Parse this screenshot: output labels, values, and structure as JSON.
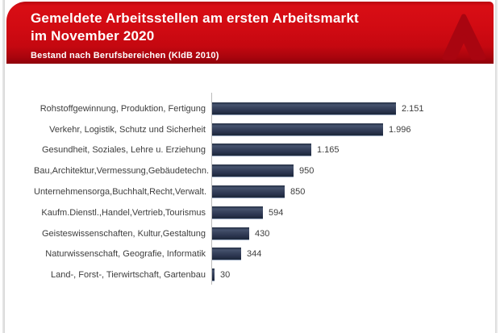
{
  "header": {
    "title_line1": "Gemeldete Arbeitsstellen am ersten Arbeitsmarkt",
    "title_line2": "im November 2020",
    "subtitle": "Bestand nach Berufsbereichen (KldB 2010)",
    "banner_color": "#CE0A12",
    "banner_bottom_color": "#8E000A",
    "logo": "bundesagentur-fuer-arbeit-a-logo",
    "logo_color": "#A90510"
  },
  "chart_data": {
    "type": "bar",
    "orientation": "horizontal",
    "title": "Gemeldete Arbeitsstellen am ersten Arbeitsmarkt im November 2020",
    "subtitle": "Bestand nach Berufsbereichen (KldB 2010)",
    "categories": [
      "Rohstoffgewinnung, Produktion, Fertigung",
      "Verkehr, Logistik, Schutz und Sicherheit",
      "Gesundheit, Soziales, Lehre u. Erziehung",
      "Bau,Architektur,Vermessung,Gebäudetechn.",
      "Unternehmensorga,Buchhalt,Recht,Verwalt.",
      "Kaufm.Dienstl.,Handel,Vertrieb,Tourismus",
      "Geisteswissenschaften, Kultur,Gestaltung",
      "Naturwissenschaft, Geografie, Informatik",
      "Land-, Forst-, Tierwirtschaft, Gartenbau"
    ],
    "values": [
      2151,
      1996,
      1165,
      950,
      850,
      594,
      430,
      344,
      30
    ],
    "value_labels": [
      "2.151",
      "1.996",
      "1.165",
      "950",
      "850",
      "594",
      "430",
      "344",
      "30"
    ],
    "xlabel": "",
    "ylabel": "",
    "xlim": [
      0,
      2300
    ],
    "grid": false,
    "legend": false,
    "bar_color": "#2E3A54",
    "value_label_color": "#3D3D3D",
    "axis_line_color": "#BCBCBC"
  }
}
